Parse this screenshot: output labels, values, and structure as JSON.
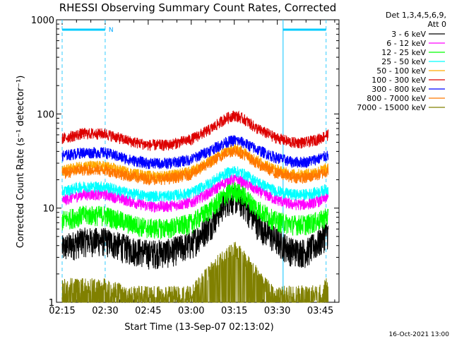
{
  "chart_data": {
    "type": "line",
    "title": "RHESSI Observing Summary Count Rates, Corrected",
    "xlabel": "Start Time (13-Sep-07 02:13:02)",
    "ylabel": "Corrected Count Rate (s⁻¹ detector⁻¹)",
    "y_scale": "log",
    "ylim": [
      1,
      1000
    ],
    "xlim": [
      "02:13:02",
      "03:51:30"
    ],
    "x_ticks": [
      "02:15",
      "02:30",
      "02:45",
      "03:00",
      "03:15",
      "03:30",
      "03:45"
    ],
    "y_ticks": [
      "1",
      "10",
      "100",
      "1000"
    ],
    "timestamp": "16-Oct-2021 13:00",
    "legend": {
      "header": [
        "Det 1,3,4,5,6,9,",
        "Att 0"
      ],
      "placement": "right"
    },
    "annotations": {
      "night_marker": "N",
      "dashed_lines": [
        "02:15",
        "02:30",
        "03:47"
      ],
      "solid_lines": [
        "03:32"
      ],
      "bar_segments": [
        [
          "02:15",
          "02:30"
        ],
        [
          "03:32",
          "03:47"
        ]
      ]
    },
    "series": [
      {
        "name": "3 - 6 keV",
        "color": "#000000",
        "x": [
          "02:15",
          "02:22",
          "02:30",
          "02:38",
          "02:45",
          "02:52",
          "03:00",
          "03:07",
          "03:12",
          "03:15",
          "03:18",
          "03:23",
          "03:29",
          "03:35",
          "03:40",
          "03:45",
          "03:47"
        ],
        "values": [
          3.8,
          4.6,
          4.6,
          3.8,
          3.4,
          3.5,
          4.2,
          7,
          12,
          13,
          11.5,
          7,
          4.8,
          3.6,
          3.5,
          4.5,
          5.5
        ]
      },
      {
        "name": "6 - 12 keV",
        "color": "#ff00ff",
        "x": [
          "02:15",
          "02:22",
          "02:30",
          "02:38",
          "02:45",
          "02:52",
          "03:00",
          "03:07",
          "03:12",
          "03:15",
          "03:18",
          "03:23",
          "03:29",
          "03:35",
          "03:40",
          "03:45",
          "03:47"
        ],
        "values": [
          12,
          14,
          14,
          12,
          10.5,
          10.5,
          11.5,
          15,
          19,
          20.5,
          19,
          15.5,
          12.5,
          11,
          11,
          12,
          13
        ]
      },
      {
        "name": "12 - 25 keV",
        "color": "#00ff00",
        "x": [
          "02:15",
          "02:22",
          "02:30",
          "02:38",
          "02:45",
          "02:52",
          "03:00",
          "03:07",
          "03:12",
          "03:15",
          "03:18",
          "03:23",
          "03:29",
          "03:35",
          "03:40",
          "03:45",
          "03:47"
        ],
        "values": [
          7.5,
          8.5,
          8.5,
          7,
          6.2,
          6.2,
          7,
          10,
          14,
          15.5,
          14,
          10,
          7.5,
          6.8,
          6.8,
          7.5,
          8.2
        ]
      },
      {
        "name": "25 - 50 keV",
        "color": "#00ffff",
        "x": [
          "02:15",
          "02:22",
          "02:30",
          "02:38",
          "02:45",
          "02:52",
          "03:00",
          "03:07",
          "03:12",
          "03:15",
          "03:18",
          "03:23",
          "03:29",
          "03:35",
          "03:40",
          "03:45",
          "03:47"
        ],
        "values": [
          15,
          17,
          17,
          14.5,
          13.5,
          13.5,
          14.5,
          19,
          23.5,
          25,
          23.5,
          19,
          15.5,
          14,
          14,
          15,
          16
        ]
      },
      {
        "name": "50 - 100 keV",
        "color": "#ffaa00",
        "x": [
          "02:15",
          "02:22",
          "02:30",
          "02:38",
          "02:45",
          "02:52",
          "03:00",
          "03:07",
          "03:12",
          "03:15",
          "03:18",
          "03:23",
          "03:29",
          "03:35",
          "03:40",
          "03:45",
          "03:47"
        ],
        "values": [
          25,
          28,
          28,
          24,
          22,
          22,
          24.5,
          32,
          40,
          43,
          40,
          32,
          26,
          23,
          23,
          25,
          26.5
        ]
      },
      {
        "name": "100 - 300 keV",
        "color": "#dd0000",
        "x": [
          "02:15",
          "02:22",
          "02:30",
          "02:38",
          "02:45",
          "02:52",
          "03:00",
          "03:07",
          "03:12",
          "03:15",
          "03:18",
          "03:23",
          "03:29",
          "03:35",
          "03:40",
          "03:45",
          "03:47"
        ],
        "values": [
          55,
          62,
          62,
          52,
          47,
          47,
          54,
          70,
          90,
          97,
          90,
          70,
          57,
          50,
          50,
          55,
          60
        ]
      },
      {
        "name": "300 - 800 keV",
        "color": "#0000ff",
        "x": [
          "02:15",
          "02:22",
          "02:30",
          "02:38",
          "02:45",
          "02:52",
          "03:00",
          "03:07",
          "03:12",
          "03:15",
          "03:18",
          "03:23",
          "03:29",
          "03:35",
          "03:40",
          "03:45",
          "03:47"
        ],
        "values": [
          36,
          39,
          39,
          33,
          30,
          30,
          33,
          42,
          50,
          53,
          50,
          42,
          35,
          31,
          31,
          34,
          36
        ]
      },
      {
        "name": "800 - 7000 keV",
        "color": "#ff7700",
        "x": [
          "02:15",
          "02:22",
          "02:30",
          "02:38",
          "02:45",
          "02:52",
          "03:00",
          "03:07",
          "03:12",
          "03:15",
          "03:18",
          "03:23",
          "03:29",
          "03:35",
          "03:40",
          "03:45",
          "03:47"
        ],
        "values": [
          23.5,
          25.5,
          25.5,
          22,
          20.5,
          20.5,
          23,
          31,
          38.5,
          41,
          38,
          30,
          24,
          21.5,
          21,
          23,
          24.5
        ]
      },
      {
        "name": "7000 - 15000 keV",
        "color": "#808000",
        "x": [
          "02:15",
          "02:22",
          "02:30",
          "02:38",
          "02:45",
          "02:52",
          "03:00",
          "03:07",
          "03:12",
          "03:15",
          "03:18",
          "03:23",
          "03:29",
          "03:35",
          "03:40",
          "03:45",
          "03:47"
        ],
        "values": [
          1.2,
          1.25,
          1.2,
          1,
          1,
          1,
          1,
          1.8,
          2.6,
          3,
          2.5,
          1.6,
          1,
          1,
          1,
          1.05,
          1.2
        ]
      }
    ]
  }
}
